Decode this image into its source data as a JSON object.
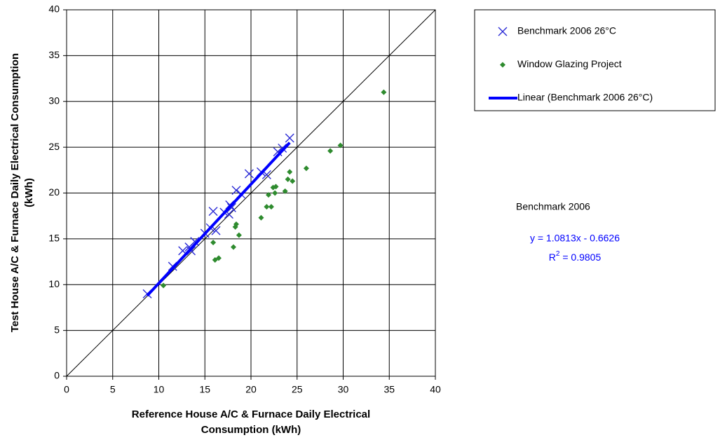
{
  "chart_data": {
    "type": "scatter",
    "x_label": [
      "Reference House A/C & Furnace Daily Electrical",
      "Consumption (kWh)"
    ],
    "y_label": [
      "Test House A/C & Furnace Daily Electrical Consumption",
      "(kWh)"
    ],
    "xlim": [
      0,
      40
    ],
    "ylim": [
      0,
      40
    ],
    "xticks": [
      0,
      5,
      10,
      15,
      20,
      25,
      30,
      35,
      40
    ],
    "yticks": [
      0,
      5,
      10,
      15,
      20,
      25,
      30,
      35,
      40
    ],
    "grid": true,
    "legend": "right",
    "series": [
      {
        "name": "Benchmark 2006 26°C",
        "color": "#2b2bd6",
        "marker": "x",
        "x": [
          8.75,
          11.5,
          12.6,
          13.3,
          13.5,
          13.9,
          15.0,
          15.6,
          15.9,
          16.2,
          17.1,
          17.6,
          17.7,
          17.9,
          18.4,
          18.9,
          19.8,
          21.1,
          21.7,
          22.9,
          23.4,
          24.2
        ],
        "values": [
          9.0,
          12.0,
          13.7,
          14.1,
          13.7,
          14.7,
          15.6,
          16.2,
          18.0,
          15.9,
          17.9,
          17.7,
          18.7,
          18.4,
          20.3,
          19.9,
          22.1,
          22.3,
          22.0,
          24.5,
          24.9,
          26.0
        ]
      },
      {
        "name": "Window Glazing Project",
        "color": "#2e8b2e",
        "marker": "diamond",
        "x": [
          10.5,
          15.9,
          16.1,
          16.5,
          18.1,
          18.3,
          18.4,
          18.7,
          21.1,
          21.7,
          22.2,
          21.9,
          22.4,
          22.6,
          22.7,
          23.7,
          24.0,
          24.2,
          24.5,
          26.0,
          28.6,
          29.7,
          34.4
        ],
        "values": [
          9.9,
          14.6,
          12.7,
          12.9,
          14.1,
          16.3,
          16.6,
          15.4,
          17.3,
          18.5,
          18.5,
          19.8,
          20.6,
          20.0,
          20.7,
          20.2,
          21.5,
          22.3,
          21.3,
          22.7,
          24.6,
          25.2,
          31.0
        ]
      },
      {
        "name": "Linear (Benchmark 2006 26°C)",
        "color": "#0000ff",
        "marker": "line",
        "x": [
          8.75,
          24.2
        ],
        "values": [
          8.8,
          25.5
        ]
      }
    ],
    "annotation": {
      "title": "Benchmark 2006",
      "equation": "y = 1.0813x - 0.6626",
      "r2": {
        "base": "R",
        "sup": "2",
        "rest": " = 0.9805"
      }
    }
  }
}
